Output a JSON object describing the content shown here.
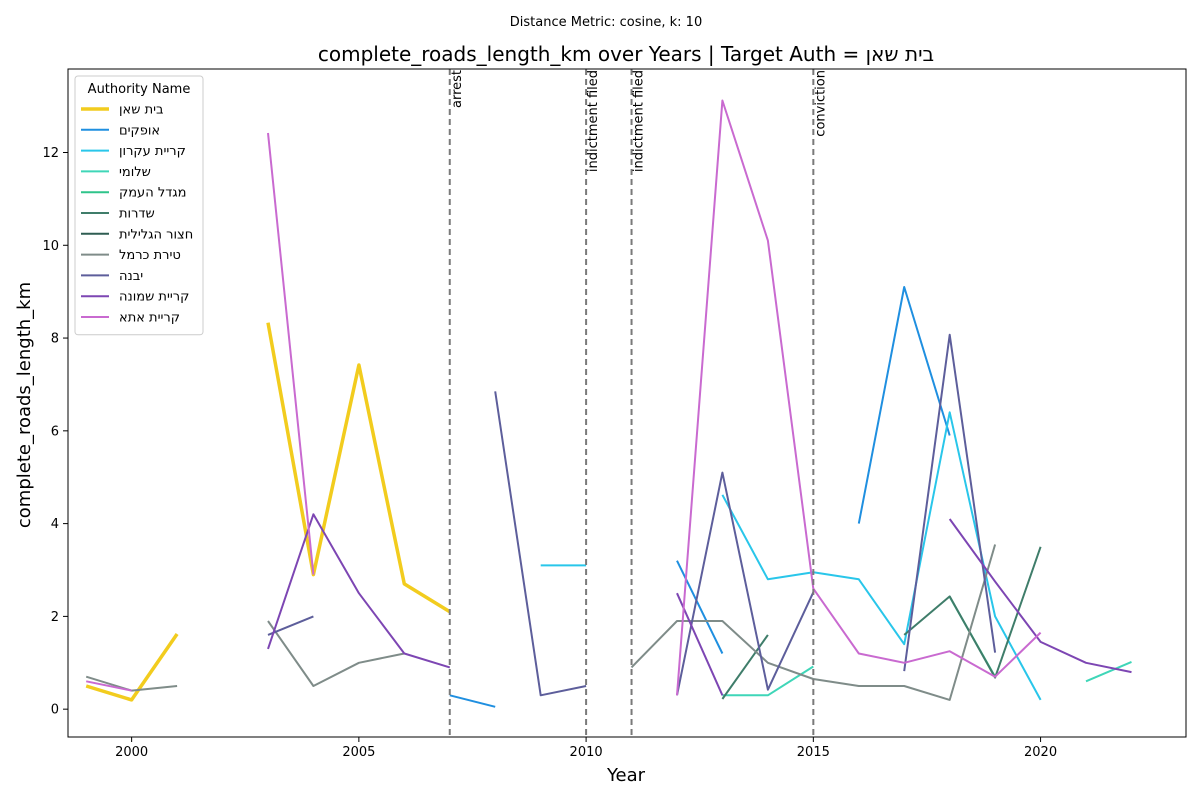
{
  "chart_data": {
    "type": "line",
    "title": "complete_roads_length_km over Years | Target Auth = בית שאן",
    "subtitle": "Distance Metric: cosine, k: 10",
    "xlabel": "Year",
    "ylabel": "complete_roads_length_km",
    "xlim": [
      1998.6,
      2023.2
    ],
    "ylim": [
      -0.6,
      13.8
    ],
    "x_ticks": [
      2000,
      2005,
      2010,
      2015,
      2020
    ],
    "y_ticks": [
      0,
      2,
      4,
      6,
      8,
      10,
      12
    ],
    "grid": false,
    "legend": {
      "title": "Authority Name",
      "placement": "top-left"
    },
    "events": [
      {
        "x": 2007,
        "label": "arrest"
      },
      {
        "x": 2010,
        "label": "indictment filed"
      },
      {
        "x": 2011,
        "label": "indictment filed"
      },
      {
        "x": 2015,
        "label": "conviction"
      }
    ],
    "series": [
      {
        "name": "בית שאן",
        "color": "#f2cc1e",
        "width": 3.5,
        "segments": [
          [
            [
              1999,
              0.5
            ],
            [
              2000,
              0.2
            ],
            [
              2001,
              1.62
            ]
          ],
          [
            [
              2003,
              8.33
            ],
            [
              2004,
              2.9
            ],
            [
              2005,
              7.42
            ],
            [
              2006,
              2.7
            ],
            [
              2007,
              2.1
            ]
          ]
        ]
      },
      {
        "name": "אופקים",
        "color": "#1f8fe0",
        "width": 2,
        "segments": [
          [
            [
              2007,
              0.3
            ],
            [
              2008,
              0.05
            ]
          ],
          [
            [
              2012,
              3.2
            ],
            [
              2013,
              1.2
            ]
          ],
          [
            [
              2016,
              4.0
            ],
            [
              2017,
              9.1
            ],
            [
              2018,
              5.9
            ]
          ]
        ]
      },
      {
        "name": "קריית עקרון",
        "color": "#29c6ea",
        "width": 2,
        "segments": [
          [
            [
              2009,
              3.1
            ],
            [
              2010,
              3.1
            ]
          ],
          [
            [
              2013,
              4.62
            ],
            [
              2014,
              2.8
            ],
            [
              2015,
              2.95
            ],
            [
              2016,
              2.8
            ],
            [
              2017,
              1.4
            ],
            [
              2018,
              6.4
            ],
            [
              2019,
              2.0
            ],
            [
              2020,
              0.2
            ]
          ]
        ]
      },
      {
        "name": "שלומי",
        "color": "#3fd6b8",
        "width": 2,
        "segments": [
          [
            [
              2013,
              0.3
            ],
            [
              2014,
              0.3
            ],
            [
              2015,
              0.92
            ]
          ],
          [
            [
              2021,
              0.6
            ],
            [
              2022,
              1.02
            ]
          ]
        ]
      },
      {
        "name": "מגדל העמק",
        "color": "#2fc48a",
        "width": 2,
        "segments": [
          [
            [
              2018,
              2.42
            ],
            [
              2019,
              0.7
            ]
          ]
        ]
      },
      {
        "name": "שדרות",
        "color": "#3f7d6a",
        "width": 2,
        "segments": [
          [
            [
              2013,
              0.22
            ],
            [
              2014,
              1.6
            ]
          ],
          [
            [
              2017,
              1.6
            ],
            [
              2018,
              2.43
            ],
            [
              2019,
              0.68
            ],
            [
              2020,
              3.5
            ]
          ]
        ]
      },
      {
        "name": "חצור הגלילית",
        "color": "#2f5d52",
        "width": 2,
        "segments": []
      },
      {
        "name": "טירת כרמל",
        "color": "#7f8c89",
        "width": 2,
        "segments": [
          [
            [
              1999,
              0.7
            ],
            [
              2000,
              0.4
            ],
            [
              2001,
              0.5
            ]
          ],
          [
            [
              2003,
              1.9
            ],
            [
              2004,
              0.5
            ],
            [
              2005,
              1.0
            ],
            [
              2006,
              1.2
            ]
          ],
          [
            [
              2011,
              0.9
            ],
            [
              2012,
              1.9
            ],
            [
              2013,
              1.9
            ],
            [
              2014,
              1.0
            ],
            [
              2015,
              0.65
            ],
            [
              2016,
              0.5
            ],
            [
              2017,
              0.5
            ],
            [
              2018,
              0.2
            ],
            [
              2019,
              3.55
            ]
          ]
        ]
      },
      {
        "name": "יבנה",
        "color": "#5d5e9b",
        "width": 2,
        "segments": [
          [
            [
              2003,
              1.6
            ],
            [
              2004,
              2.0
            ]
          ],
          [
            [
              2008,
              6.85
            ],
            [
              2009,
              0.3
            ],
            [
              2010,
              0.5
            ]
          ],
          [
            [
              2012,
              0.3
            ],
            [
              2013,
              5.1
            ],
            [
              2014,
              0.42
            ],
            [
              2015,
              2.52
            ]
          ],
          [
            [
              2017,
              0.82
            ],
            [
              2018,
              8.07
            ],
            [
              2019,
              1.22
            ]
          ]
        ]
      },
      {
        "name": "קריית שמונה",
        "color": "#7d46b3",
        "width": 2,
        "segments": [
          [
            [
              2003,
              1.3
            ],
            [
              2004,
              4.2
            ],
            [
              2005,
              2.5
            ],
            [
              2006,
              1.2
            ],
            [
              2007,
              0.9
            ]
          ],
          [
            [
              2012,
              2.5
            ],
            [
              2013,
              0.3
            ]
          ],
          [
            [
              2018,
              4.1
            ],
            [
              2019,
              2.75
            ],
            [
              2020,
              1.45
            ],
            [
              2021,
              1.0
            ],
            [
              2022,
              0.8
            ]
          ]
        ]
      },
      {
        "name": "קריית אתא",
        "color": "#c96ad0",
        "width": 2,
        "segments": [
          [
            [
              1999,
              0.6
            ],
            [
              2000,
              0.4
            ]
          ],
          [
            [
              2003,
              12.42
            ],
            [
              2004,
              2.9
            ]
          ],
          [
            [
              2012,
              0.3
            ],
            [
              2013,
              13.12
            ],
            [
              2014,
              10.1
            ],
            [
              2015,
              2.6
            ],
            [
              2016,
              1.2
            ],
            [
              2017,
              1.0
            ],
            [
              2018,
              1.25
            ],
            [
              2019,
              0.7
            ],
            [
              2020,
              1.65
            ]
          ]
        ]
      }
    ]
  }
}
